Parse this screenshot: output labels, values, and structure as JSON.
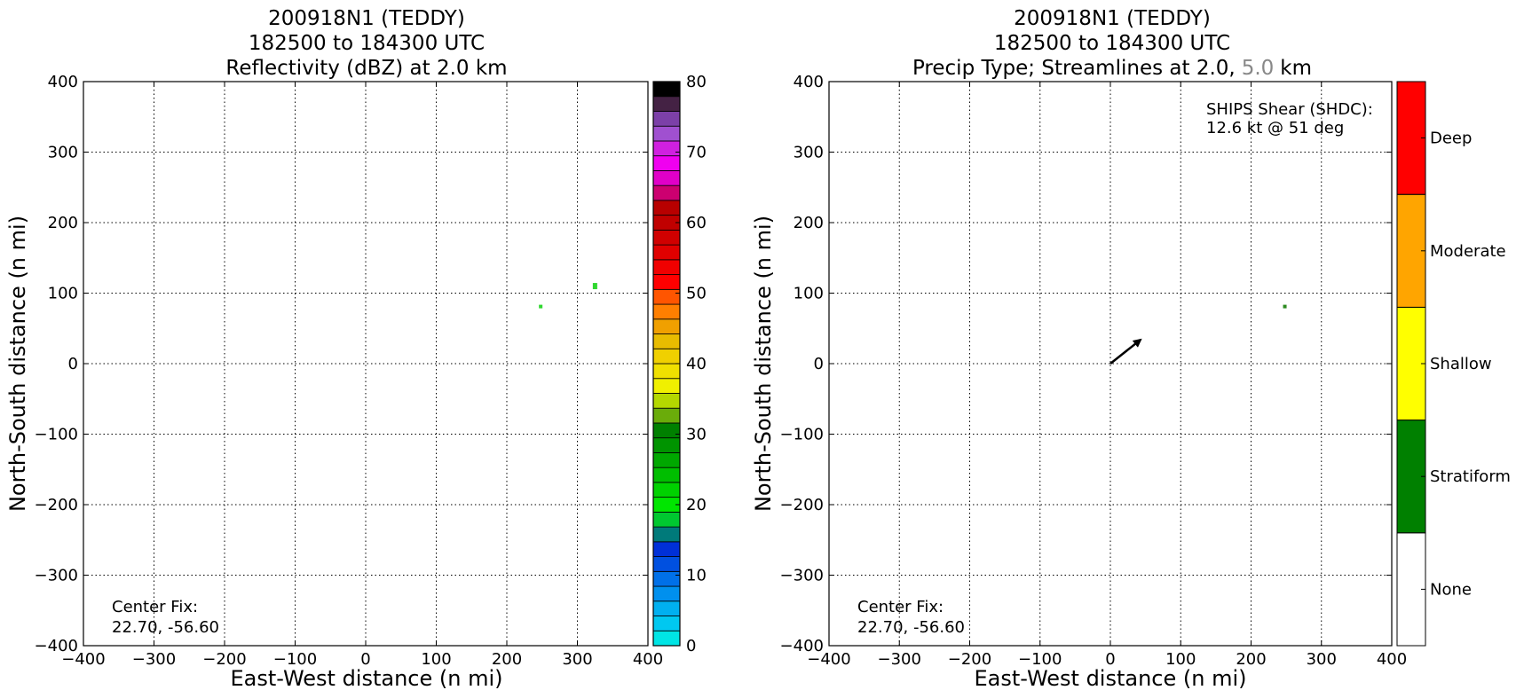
{
  "colors": {
    "background": "#ffffff",
    "grid": "#000000",
    "echo_light": "#2fd72f",
    "echo_dark": "#2e8b22",
    "arrow": "#000000",
    "title_highlight": "#888888"
  },
  "charts": {
    "left": {
      "title_lines": [
        "200918N1 (TEDDY)",
        "182500 to 184300 UTC",
        "Reflectivity (dBZ) at 2.0 km"
      ],
      "note_lines": [
        "Center Fix:",
        "22.70, -56.60"
      ],
      "colorbar_ticks": [
        "0",
        "10",
        "20",
        "30",
        "40",
        "50",
        "60",
        "70",
        "80"
      ]
    },
    "right": {
      "title_lines": [
        "200918N1 (TEDDY)",
        "182500 to 184300 UTC"
      ],
      "title3": {
        "prefix": "Precip Type; Streamlines at 2.0,",
        "highlight": "5.0",
        "suffix": "km"
      },
      "shear_lines": [
        "SHIPS Shear (SHDC):",
        "12.6 kt @ 51 deg"
      ],
      "note_lines": [
        "Center Fix:",
        "22.70, -56.60"
      ]
    }
  },
  "chart_data": [
    {
      "type": "heatmap",
      "title": "200918N1 (TEDDY) 182500 to 184300 UTC Reflectivity (dBZ) at 2.0 km",
      "xlabel": "East-West distance (n mi)",
      "ylabel": "North-South distance (n mi)",
      "xlim": [
        -400,
        400
      ],
      "ylim": [
        -400,
        400
      ],
      "xticks": [
        -400,
        -300,
        -200,
        -100,
        0,
        100,
        200,
        300,
        400
      ],
      "yticks": [
        -400,
        -300,
        -200,
        -100,
        0,
        100,
        200,
        300,
        400
      ],
      "grid": true,
      "cells": [
        {
          "x": 248,
          "y": 81,
          "dbz": 20
        },
        {
          "x": 325,
          "y": 110,
          "dbz": 20
        }
      ],
      "colorbar": {
        "range": [
          0,
          80
        ],
        "step": 2.5,
        "colors": [
          "#00e5e5",
          "#00c8f0",
          "#00b0f0",
          "#0090ee",
          "#0070e8",
          "#0050e0",
          "#0030d8",
          "#007a7a",
          "#00c830",
          "#00e600",
          "#00d200",
          "#00be00",
          "#00a800",
          "#009400",
          "#008000",
          "#6aac0a",
          "#b4d800",
          "#f0f000",
          "#f0e000",
          "#f0d000",
          "#e8bc00",
          "#f0a000",
          "#ff7f00",
          "#ff5500",
          "#ff0000",
          "#f00000",
          "#e00000",
          "#d00000",
          "#c00000",
          "#b80000",
          "#cc0070",
          "#e000c8",
          "#f000f0",
          "#d020e0",
          "#a050d0",
          "#7c40a8",
          "#442244",
          "#000000"
        ]
      }
    },
    {
      "type": "heatmap",
      "title": "200918N1 (TEDDY) 182500 to 184300 UTC Precip Type; Streamlines at 2.0, 5.0 km",
      "xlabel": "East-West distance (n mi)",
      "ylabel": "North-South distance (n mi)",
      "xlim": [
        -400,
        400
      ],
      "ylim": [
        -400,
        400
      ],
      "xticks": [
        -400,
        -300,
        -200,
        -100,
        0,
        100,
        200,
        300,
        400
      ],
      "yticks": [
        -400,
        -300,
        -200,
        -100,
        0,
        100,
        200,
        300,
        400
      ],
      "grid": true,
      "cells": [
        {
          "x": 248,
          "y": 81,
          "category": "Stratiform"
        }
      ],
      "shear_vector": {
        "magnitude_kt": 12.6,
        "direction_deg": 51,
        "arrow_from": [
          0,
          0
        ],
        "arrow_to": [
          43,
          34
        ]
      },
      "categories": [
        {
          "label": "None",
          "color": "#ffffff"
        },
        {
          "label": "Stratiform",
          "color": "#008000"
        },
        {
          "label": "Shallow",
          "color": "#ffff00"
        },
        {
          "label": "Moderate",
          "color": "#ffa500"
        },
        {
          "label": "Deep",
          "color": "#ff0000"
        }
      ]
    }
  ]
}
